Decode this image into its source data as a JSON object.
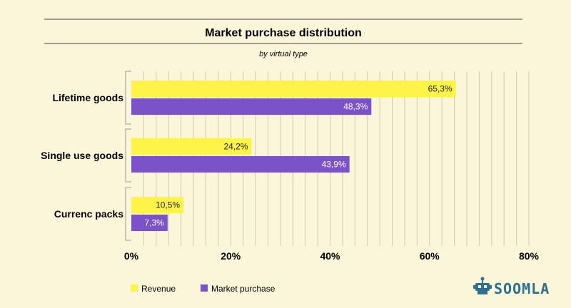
{
  "chart_data": {
    "type": "bar",
    "orientation": "horizontal",
    "title": "Market purchase distribution",
    "subtitle": "by virtual type",
    "categories": [
      "Lifetime goods",
      "Single use goods",
      "Currenc packs"
    ],
    "series": [
      {
        "name": "Revenue",
        "color": "#fef348",
        "values": [
          65.3,
          24.2,
          10.5
        ],
        "labels": [
          "65,3%",
          "24,2%",
          "10,5%"
        ]
      },
      {
        "name": "Market purchase",
        "color": "#7b52c8",
        "values": [
          48.3,
          43.9,
          7.3
        ],
        "labels": [
          "48,3%",
          "43,9%",
          "7,3%"
        ]
      }
    ],
    "xlim": [
      0,
      80
    ],
    "xticks": [
      0,
      20,
      40,
      60,
      80
    ],
    "xtick_labels": [
      "0%",
      "20%",
      "40%",
      "60%",
      "80%"
    ],
    "grid": true,
    "legend_position": "bottom-left"
  },
  "brand": {
    "logo_text": "SOOMLA",
    "logo_color": "#2f6f8f"
  },
  "colors": {
    "background": "#fbf6d9",
    "gridline": "#cfc9b3"
  }
}
